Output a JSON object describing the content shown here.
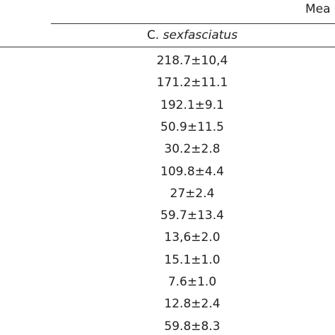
{
  "header": {
    "group_label": "Mea",
    "column_genus": "C.",
    "column_species": "sexfasciatus"
  },
  "table": {
    "rows": [
      "218.7±10,4",
      "171.2±11.1",
      "192.1±9.1",
      "50.9±11.5",
      "30.2±2.8",
      "109.8±4.4",
      "27±2.4",
      "59.7±13.4",
      "13,6±2.0",
      "15.1±1.0",
      "7.6±1.0",
      "12.8±2.4",
      "59.8±8.3"
    ]
  }
}
